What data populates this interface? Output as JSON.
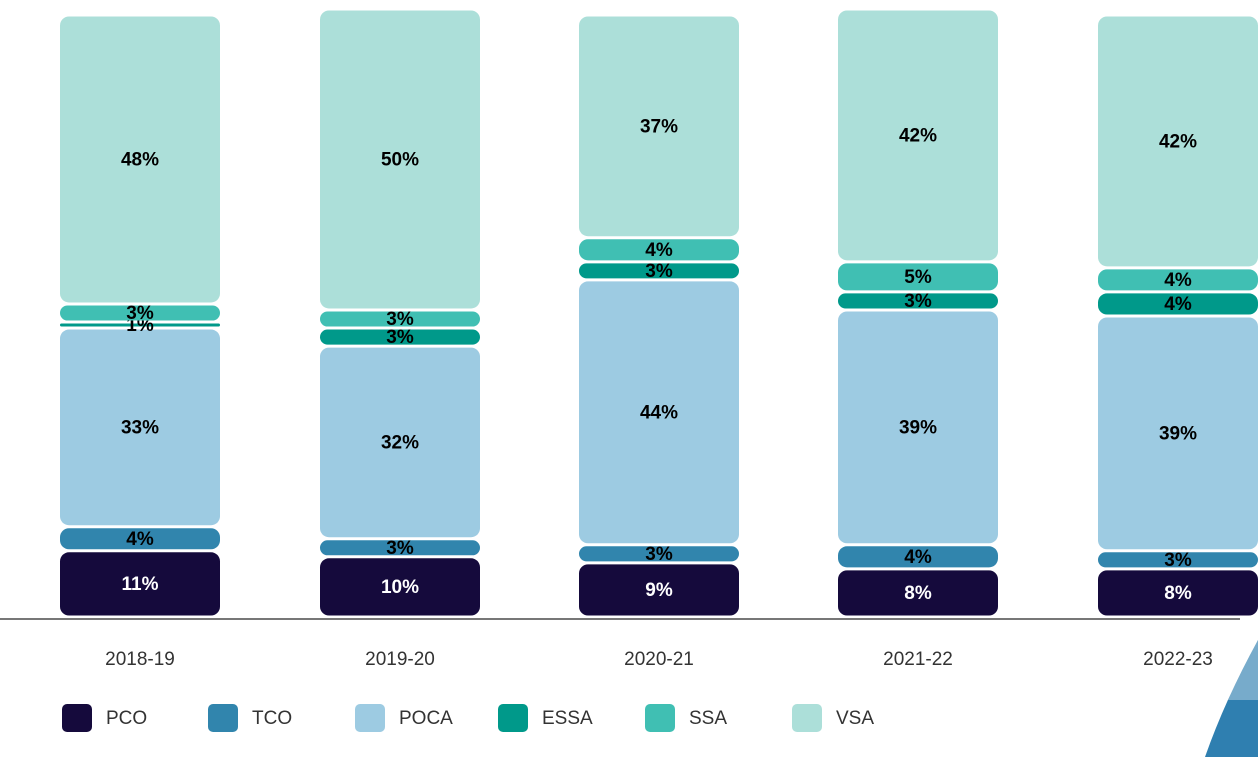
{
  "chart_data": {
    "type": "stacked_bar",
    "categories": [
      "2018-19",
      "2019-20",
      "2020-21",
      "2021-22",
      "2022-23"
    ],
    "series": [
      {
        "name": "PCO",
        "color": "#150a3c",
        "values": [
          11,
          10,
          9,
          8,
          8
        ],
        "value_labels": [
          "11%",
          "10%",
          "9%",
          "8%",
          "8%"
        ]
      },
      {
        "name": "TCO",
        "color": "#3185ad",
        "values": [
          4,
          3,
          3,
          4,
          3
        ],
        "value_labels": [
          "4%",
          "3%",
          "3%",
          "4%",
          "3%"
        ]
      },
      {
        "name": "POCA",
        "color": "#9dcbe2",
        "values": [
          33,
          32,
          44,
          39,
          39
        ],
        "value_labels": [
          "33%",
          "32%",
          "44%",
          "39%",
          "39%"
        ]
      },
      {
        "name": "ESSA",
        "color": "#00998a",
        "values": [
          1,
          3,
          3,
          3,
          4
        ],
        "value_labels": [
          "1%",
          "3%",
          "3%",
          "3%",
          "4%"
        ]
      },
      {
        "name": "SSA",
        "color": "#40bfb3",
        "values": [
          3,
          3,
          4,
          5,
          4
        ],
        "value_labels": [
          "3%",
          "3%",
          "4%",
          "5%",
          "4%"
        ]
      },
      {
        "name": "VSA",
        "color": "#acdfd9",
        "values": [
          48,
          50,
          37,
          42,
          42
        ],
        "value_labels": [
          "48%",
          "50%",
          "37%",
          "42%",
          "42%"
        ]
      }
    ]
  }
}
